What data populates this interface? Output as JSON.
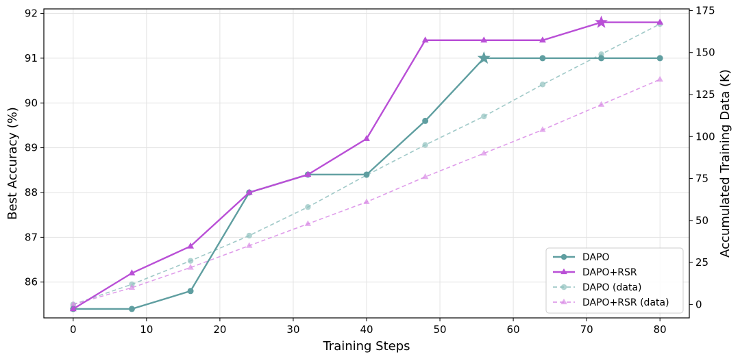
{
  "chart_data": {
    "type": "line",
    "title": "",
    "xlabel": "Training Steps",
    "ylabel": "Best Accuracy (%)",
    "y2label": "Accumulated Training Data (K)",
    "xlim": [
      -4,
      84
    ],
    "ylim": [
      85.2,
      92.1
    ],
    "y2lim": [
      -8,
      176
    ],
    "xticks": [
      0,
      10,
      20,
      30,
      40,
      50,
      60,
      70,
      80
    ],
    "yticks": [
      86,
      87,
      88,
      89,
      90,
      91,
      92
    ],
    "y2ticks": [
      0,
      25,
      50,
      75,
      100,
      125,
      150,
      175
    ],
    "grid": true,
    "legend_position": "bottom-right",
    "series": [
      {
        "name": "DAPO",
        "axis": "left",
        "color": "#5f9ea0",
        "style": "solid",
        "marker": "circle",
        "x": [
          0,
          8,
          16,
          24,
          32,
          40,
          48,
          56,
          64,
          72,
          80
        ],
        "y": [
          85.4,
          85.4,
          85.8,
          88.0,
          88.4,
          88.4,
          89.6,
          91.0,
          91.0,
          91.0,
          91.0
        ],
        "best_index": 7
      },
      {
        "name": "DAPO+RSR",
        "axis": "left",
        "color": "#b94fd6",
        "style": "solid",
        "marker": "triangle",
        "x": [
          0,
          8,
          16,
          24,
          32,
          40,
          48,
          56,
          64,
          72,
          80
        ],
        "y": [
          85.4,
          86.2,
          86.8,
          88.0,
          88.4,
          89.2,
          91.4,
          91.4,
          91.4,
          91.8,
          91.8
        ],
        "best_index": 9
      },
      {
        "name": "DAPO (data)",
        "axis": "right",
        "color": "#8fc0be",
        "style": "dashed",
        "marker": "circle",
        "x": [
          0,
          8,
          16,
          24,
          32,
          40,
          48,
          56,
          64,
          72,
          80
        ],
        "y": [
          0,
          12,
          26,
          41,
          58,
          77,
          95,
          112,
          131,
          149,
          167
        ]
      },
      {
        "name": "DAPO+RSR (data)",
        "axis": "right",
        "color": "#d98be6",
        "style": "dashed",
        "marker": "triangle",
        "x": [
          0,
          8,
          16,
          24,
          32,
          40,
          48,
          56,
          64,
          72,
          80
        ],
        "y": [
          0,
          10,
          22,
          35,
          48,
          61,
          76,
          90,
          104,
          119,
          134
        ]
      }
    ]
  }
}
